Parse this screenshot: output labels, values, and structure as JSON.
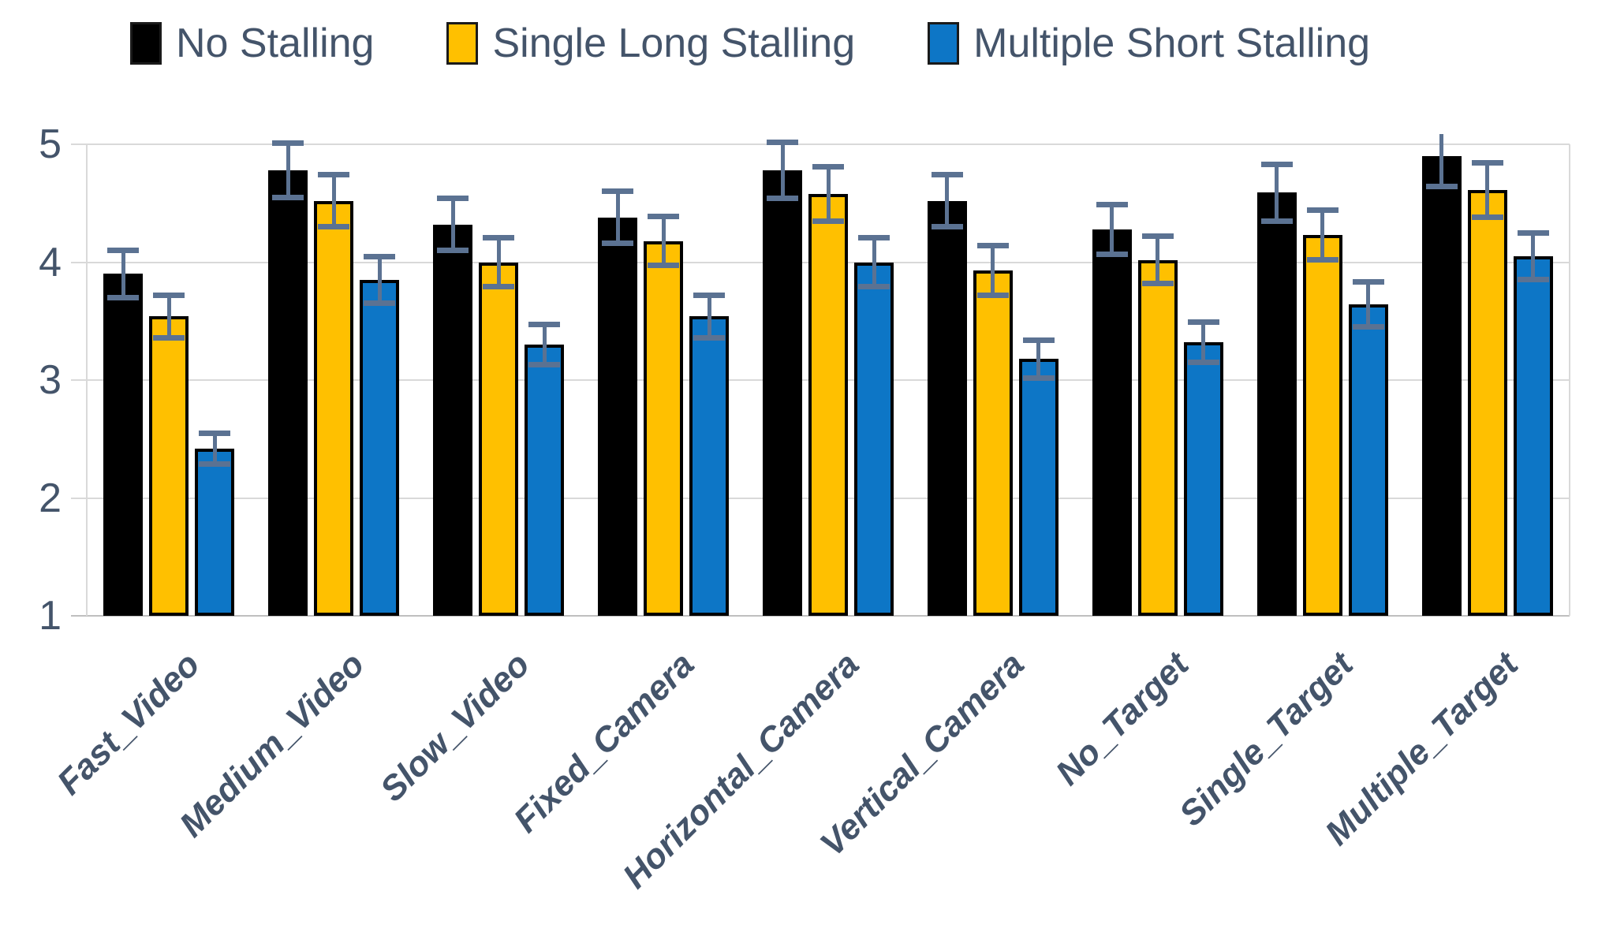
{
  "chart_data": {
    "type": "bar",
    "title": "",
    "categories": [
      "Fast_Video",
      "Medium_Video",
      "Slow_Video",
      "Fixed_Camera",
      "Horizontal_Camera",
      "Vertical_Camera",
      "No_Target",
      "Single_Target",
      "Multiple_Target"
    ],
    "series": [
      {
        "name": "No Stalling",
        "color": "#000000",
        "values": [
          3.9,
          4.78,
          4.32,
          4.38,
          4.78,
          4.52,
          4.28,
          4.59,
          4.9
        ],
        "errors": [
          0.2,
          0.23,
          0.22,
          0.22,
          0.24,
          0.22,
          0.21,
          0.24,
          0.26
        ]
      },
      {
        "name": "Single Long Stalling",
        "color": "#FFC000",
        "values": [
          3.54,
          4.52,
          4.0,
          4.18,
          4.58,
          3.93,
          4.02,
          4.23,
          4.61
        ],
        "errors": [
          0.18,
          0.22,
          0.21,
          0.21,
          0.23,
          0.21,
          0.2,
          0.21,
          0.23
        ]
      },
      {
        "name": "Multiple Short Stalling",
        "color": "#0D76C6",
        "values": [
          2.42,
          3.85,
          3.3,
          3.54,
          4.0,
          3.18,
          3.32,
          3.64,
          4.05
        ],
        "errors": [
          0.13,
          0.2,
          0.17,
          0.18,
          0.21,
          0.16,
          0.17,
          0.19,
          0.2
        ]
      }
    ],
    "y_axis": {
      "tick_labels": [
        "5",
        "4",
        "3",
        "2",
        "1"
      ],
      "tick_values": [
        5,
        4,
        3,
        2,
        1
      ],
      "min": 1,
      "max": 5
    },
    "xlabel": "",
    "ylabel": "",
    "grid": "horizontal",
    "legend_position": "top",
    "colors": {
      "axis_text": "#44546A",
      "gridline": "#D9D9D9",
      "baseline": "#BFBFBF",
      "error_bar": "#5B7292",
      "bar_outline": "#000000"
    }
  },
  "legend": {
    "items": [
      {
        "label": "No Stalling"
      },
      {
        "label": "Single Long Stalling"
      },
      {
        "label": "Multiple Short Stalling"
      }
    ]
  }
}
